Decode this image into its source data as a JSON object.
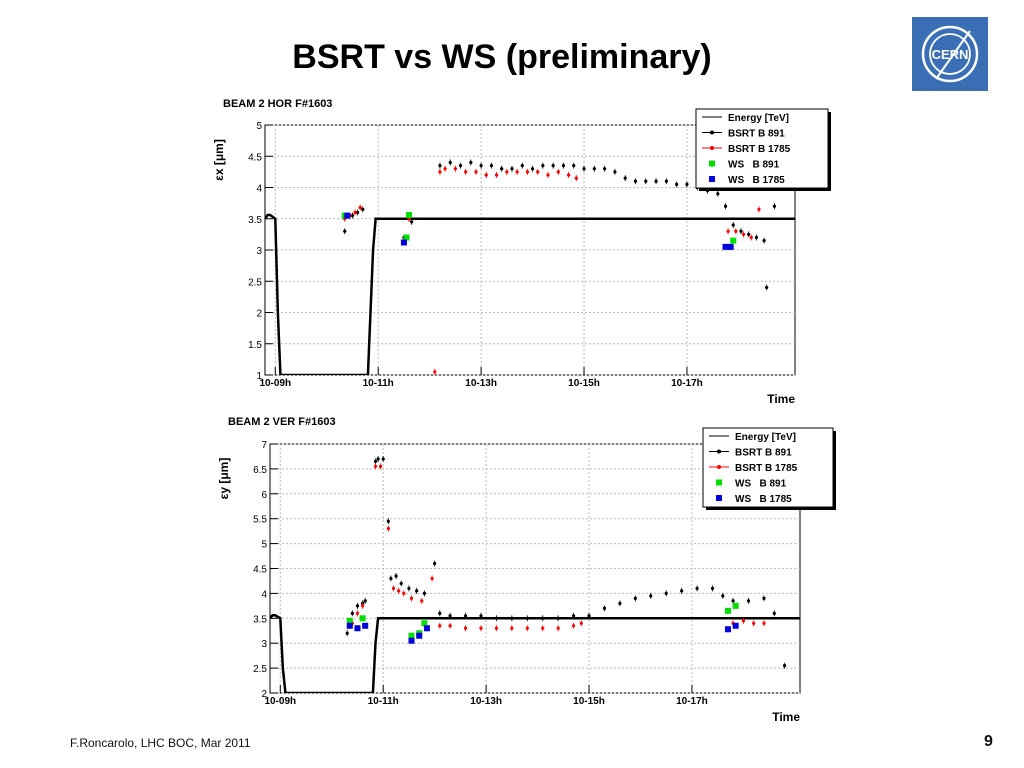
{
  "slide": {
    "title": "BSRT vs WS (preliminary)",
    "footer": "F.Roncarolo, LHC BOC, Mar 2011",
    "page_number": "9",
    "logo_text": "CERN"
  },
  "colors": {
    "energy": "#000000",
    "bsrt891": "#000000",
    "bsrt1785": "#ff0000",
    "ws891": "#00dd00",
    "ws1785": "#0000dd",
    "logo": "#3a6fb5"
  },
  "chart_data": [
    {
      "type": "scatter",
      "title": "BEAM 2 HOR F#1603",
      "ylabel": "εx [μm]",
      "xlabel": "Time",
      "xlim": [
        9.0,
        19.3
      ],
      "ylim": [
        1,
        5
      ],
      "yticks": [
        "1",
        "1.5",
        "2",
        "2.5",
        "3",
        "3.5",
        "4",
        "4.5",
        "5"
      ],
      "xticks": [
        {
          "label": "10-09h",
          "x": 9.2
        },
        {
          "label": "10-11h",
          "x": 11.2
        },
        {
          "label": "10-13h",
          "x": 13.2
        },
        {
          "label": "10-15h",
          "x": 15.2
        },
        {
          "label": "10-17h",
          "x": 17.2
        }
      ],
      "grid": true,
      "legend_position": "top-right",
      "series": [
        {
          "name": "Energy [TeV]",
          "style": "line",
          "x": [
            9.0,
            9.05,
            9.1,
            9.2,
            9.25,
            9.3,
            11.0,
            11.1,
            11.15,
            19.3
          ],
          "y": [
            3.5,
            3.56,
            3.56,
            3.5,
            2.0,
            1.0,
            1.0,
            3.0,
            3.5,
            3.5
          ]
        },
        {
          "name": "BSRT B 891",
          "style": "marker",
          "x": [
            10.55,
            10.6,
            10.7,
            10.8,
            10.9,
            11.7,
            11.8,
            11.85,
            12.4,
            12.6,
            12.8,
            13.0,
            13.2,
            13.4,
            13.6,
            13.8,
            14.0,
            14.2,
            14.4,
            14.6,
            14.8,
            15.0,
            15.2,
            15.4,
            15.6,
            15.8,
            16.0,
            16.2,
            16.4,
            16.6,
            16.8,
            17.0,
            17.2,
            17.4,
            17.6,
            17.8,
            17.95,
            18.1,
            18.25,
            18.4,
            18.55,
            18.7,
            18.75,
            18.9
          ],
          "y": [
            3.3,
            3.55,
            3.55,
            3.6,
            3.65,
            3.2,
            3.5,
            3.45,
            4.35,
            4.4,
            4.35,
            4.4,
            4.35,
            4.35,
            4.3,
            4.3,
            4.35,
            4.3,
            4.35,
            4.35,
            4.35,
            4.35,
            4.3,
            4.3,
            4.3,
            4.25,
            4.15,
            4.1,
            4.1,
            4.1,
            4.1,
            4.05,
            4.05,
            4.0,
            3.95,
            3.9,
            3.7,
            3.4,
            3.3,
            3.25,
            3.2,
            3.15,
            2.4,
            3.7
          ]
        },
        {
          "name": "BSRT B 1785",
          "style": "marker",
          "x": [
            10.55,
            10.65,
            10.75,
            10.85,
            11.7,
            11.8,
            12.3,
            12.4,
            12.5,
            12.7,
            12.9,
            13.1,
            13.3,
            13.5,
            13.7,
            13.9,
            14.1,
            14.3,
            14.5,
            14.7,
            14.9,
            15.05,
            18.0,
            18.15,
            18.3,
            18.45,
            18.6
          ],
          "y": [
            3.5,
            3.55,
            3.6,
            3.68,
            3.15,
            3.5,
            1.05,
            4.25,
            4.3,
            4.3,
            4.25,
            4.25,
            4.2,
            4.2,
            4.25,
            4.25,
            4.25,
            4.25,
            4.2,
            4.25,
            4.2,
            4.15,
            3.3,
            3.3,
            3.25,
            3.2,
            3.65
          ]
        },
        {
          "name": "WS   B 891",
          "style": "square",
          "x": [
            10.55,
            11.75,
            11.8,
            18.1
          ],
          "y": [
            3.55,
            3.2,
            3.56,
            3.15
          ]
        },
        {
          "name": "WS   B 1785",
          "style": "square",
          "x": [
            10.6,
            11.7,
            17.95,
            18.05
          ],
          "y": [
            3.55,
            3.12,
            3.05,
            3.05
          ]
        }
      ]
    },
    {
      "type": "scatter",
      "title": "BEAM 2 VER F#1603",
      "ylabel": "εy [μm]",
      "xlabel": "Time",
      "xlim": [
        9.0,
        19.3
      ],
      "ylim": [
        2,
        7
      ],
      "yticks": [
        "2",
        "2.5",
        "3",
        "3.5",
        "4",
        "4.5",
        "5",
        "5.5",
        "6",
        "6.5",
        "7"
      ],
      "xticks": [
        {
          "label": "10-09h",
          "x": 9.2
        },
        {
          "label": "10-11h",
          "x": 11.2
        },
        {
          "label": "10-13h",
          "x": 13.2
        },
        {
          "label": "10-15h",
          "x": 15.2
        },
        {
          "label": "10-17h",
          "x": 17.2
        }
      ],
      "grid": true,
      "legend_position": "top-right",
      "series": [
        {
          "name": "Energy [TeV]",
          "style": "line",
          "x": [
            9.0,
            9.05,
            9.1,
            9.2,
            9.25,
            9.3,
            11.0,
            11.05,
            11.1,
            19.3
          ],
          "y": [
            3.5,
            3.56,
            3.56,
            3.5,
            2.5,
            2.0,
            2.0,
            3.0,
            3.5,
            3.5
          ]
        },
        {
          "name": "BSRT B 891",
          "style": "marker",
          "x": [
            10.5,
            10.6,
            10.7,
            10.8,
            10.85,
            11.05,
            11.1,
            11.2,
            11.3,
            11.35,
            11.45,
            11.55,
            11.7,
            11.85,
            12.0,
            12.2,
            12.3,
            12.5,
            12.8,
            13.1,
            13.4,
            13.7,
            14.0,
            14.3,
            14.6,
            14.9,
            15.2,
            15.5,
            15.8,
            16.1,
            16.4,
            16.7,
            17.0,
            17.3,
            17.6,
            17.8,
            18.0,
            18.3,
            18.6,
            18.8,
            19.0
          ],
          "y": [
            3.2,
            3.6,
            3.75,
            3.8,
            3.85,
            6.65,
            6.7,
            6.7,
            5.45,
            4.3,
            4.35,
            4.2,
            4.1,
            4.05,
            4.0,
            4.6,
            3.6,
            3.55,
            3.55,
            3.55,
            3.5,
            3.5,
            3.5,
            3.5,
            3.5,
            3.55,
            3.55,
            3.7,
            3.8,
            3.9,
            3.95,
            4.0,
            4.05,
            4.1,
            4.1,
            3.95,
            3.85,
            3.85,
            3.9,
            3.6,
            2.55
          ]
        },
        {
          "name": "BSRT B 1785",
          "style": "marker",
          "x": [
            10.6,
            10.7,
            10.8,
            11.05,
            11.15,
            11.3,
            11.4,
            11.5,
            11.6,
            11.75,
            11.95,
            12.15,
            12.3,
            12.5,
            12.8,
            13.1,
            13.4,
            13.7,
            14.0,
            14.3,
            14.6,
            14.9,
            15.05,
            18.0,
            18.2,
            18.4,
            18.6
          ],
          "y": [
            3.4,
            3.6,
            3.75,
            6.55,
            6.55,
            5.3,
            4.1,
            4.05,
            4.0,
            3.9,
            3.85,
            4.3,
            3.35,
            3.35,
            3.3,
            3.3,
            3.3,
            3.3,
            3.3,
            3.3,
            3.3,
            3.35,
            3.4,
            3.4,
            3.45,
            3.4,
            3.4
          ]
        },
        {
          "name": "WS   B 891",
          "style": "square",
          "x": [
            10.55,
            10.8,
            11.75,
            11.9,
            12.0,
            17.9,
            18.05
          ],
          "y": [
            3.45,
            3.5,
            3.15,
            3.2,
            3.4,
            3.65,
            3.75
          ]
        },
        {
          "name": "WS   B 1785",
          "style": "square",
          "x": [
            10.55,
            10.7,
            10.85,
            11.75,
            11.9,
            12.05,
            17.9,
            18.05
          ],
          "y": [
            3.35,
            3.3,
            3.35,
            3.05,
            3.15,
            3.3,
            3.28,
            3.35
          ]
        }
      ]
    }
  ]
}
